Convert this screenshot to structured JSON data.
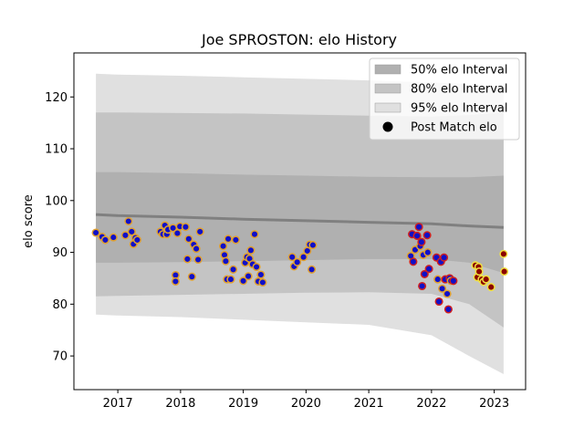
{
  "chart_data": {
    "type": "scatter",
    "title": "Joe SPROSTON: elo History",
    "xlabel": "",
    "ylabel": "elo score",
    "xlim": [
      2016.3,
      2023.5
    ],
    "ylim": [
      63.5,
      128.5
    ],
    "x_ticks": [
      2017,
      2018,
      2019,
      2020,
      2021,
      2022,
      2023
    ],
    "y_ticks": [
      70,
      80,
      90,
      100,
      110,
      120
    ],
    "grid": false,
    "legend_position": "top-right",
    "legend": [
      {
        "label": "50% elo Interval",
        "color": "#b0b0b0"
      },
      {
        "label": "80% elo Interval",
        "color": "#c4c4c4"
      },
      {
        "label": "95% elo Interval",
        "color": "#e0e0e0"
      },
      {
        "label": "Post Match elo",
        "color": "#000000"
      }
    ],
    "colors": {
      "point_fill_old": "#1010c8",
      "point_edge_old": "#e0a030",
      "point_fill_new": "#8b0000",
      "point_edge_new": "#f0e040",
      "median": "#808080"
    },
    "bands": {
      "x": [
        2016.65,
        2017.0,
        2018.0,
        2019.0,
        2020.0,
        2021.0,
        2022.0,
        2022.6,
        2023.15
      ],
      "median": [
        97.3,
        97.1,
        96.8,
        96.4,
        96.1,
        95.8,
        95.5,
        95.1,
        94.8
      ],
      "band50": {
        "upper": [
          105.5,
          105.5,
          105.3,
          105.0,
          104.8,
          104.6,
          104.5,
          104.5,
          104.8
        ],
        "lower": [
          88.0,
          88.0,
          88.1,
          88.3,
          88.5,
          88.7,
          88.7,
          88.0,
          86.0
        ]
      },
      "band80": {
        "upper": [
          117.0,
          117.0,
          116.9,
          116.8,
          116.6,
          116.4,
          116.2,
          116.5,
          117.0
        ],
        "lower": [
          81.5,
          81.6,
          81.8,
          82.0,
          82.2,
          82.3,
          82.0,
          80.0,
          75.5
        ]
      },
      "band95": {
        "upper": [
          124.5,
          124.3,
          124.1,
          123.8,
          123.5,
          123.2,
          122.8,
          122.5,
          122.0
        ],
        "lower": [
          78.0,
          77.8,
          77.5,
          77.0,
          76.5,
          76.0,
          74.0,
          70.0,
          66.5
        ]
      }
    },
    "series": [
      {
        "x": [
          2016.65,
          2016.75,
          2016.8,
          2016.93,
          2017.12,
          2017.17,
          2017.22,
          2017.25,
          2017.28,
          2017.31,
          2017.68,
          2017.72,
          2017.75,
          2017.78,
          2017.8,
          2017.88,
          2017.92,
          2017.92,
          2017.95,
          2017.99,
          2018.08,
          2018.11,
          2018.13,
          2018.18,
          2018.21,
          2018.25,
          2018.28,
          2018.31,
          2018.68,
          2018.7,
          2018.72,
          2018.74,
          2018.76,
          2018.8,
          2018.84,
          2018.88,
          2019.0,
          2019.03,
          2019.06,
          2019.08,
          2019.1,
          2019.12,
          2019.15,
          2019.18,
          2019.21,
          2019.24,
          2019.28,
          2019.31,
          2019.78,
          2019.81,
          2019.86,
          2019.96,
          2020.02,
          2020.06,
          2020.09,
          2020.11
        ],
        "y": [
          93.8,
          93.0,
          92.4,
          92.9,
          93.3,
          96.0,
          94.0,
          91.6,
          92.8,
          92.4,
          94.0,
          93.5,
          95.2,
          93.5,
          94.4,
          94.7,
          85.6,
          84.4,
          93.7,
          95.0,
          94.9,
          88.7,
          92.6,
          85.3,
          91.5,
          90.7,
          88.6,
          94.0,
          91.2,
          89.5,
          88.3,
          84.8,
          92.6,
          84.8,
          86.7,
          92.4,
          84.5,
          88.0,
          89.1,
          85.4,
          88.8,
          90.4,
          87.7,
          93.5,
          87.2,
          84.4,
          85.7,
          84.2,
          89.1,
          87.3,
          88.1,
          89.1,
          90.3,
          91.5,
          86.7,
          91.4
        ]
      },
      {
        "x": [
          2021.67,
          2021.69,
          2021.71,
          2021.74,
          2021.77,
          2021.8,
          2021.82,
          2021.84,
          2021.85,
          2021.87,
          2021.89,
          2021.93,
          2021.94,
          2021.96,
          2022.08,
          2022.1,
          2022.12,
          2022.15,
          2022.17,
          2022.2,
          2022.22,
          2022.25,
          2022.27,
          2022.29,
          2022.31,
          2022.35
        ],
        "y": [
          89.3,
          93.5,
          88.2,
          90.5,
          93.2,
          94.9,
          91.2,
          92.0,
          83.5,
          89.5,
          85.8,
          93.3,
          90.0,
          86.8,
          89.0,
          84.8,
          80.5,
          88.2,
          83.0,
          89.0,
          84.8,
          82.0,
          79.0,
          85.0,
          84.5,
          84.5
        ]
      },
      {
        "x": [
          2022.7,
          2022.73,
          2022.75,
          2022.76,
          2022.8,
          2022.83,
          2022.87,
          2022.95,
          2023.15,
          2023.16
        ],
        "y": [
          87.5,
          85.2,
          87.2,
          86.3,
          84.8,
          84.3,
          84.8,
          83.3,
          89.7,
          86.3
        ]
      }
    ]
  }
}
